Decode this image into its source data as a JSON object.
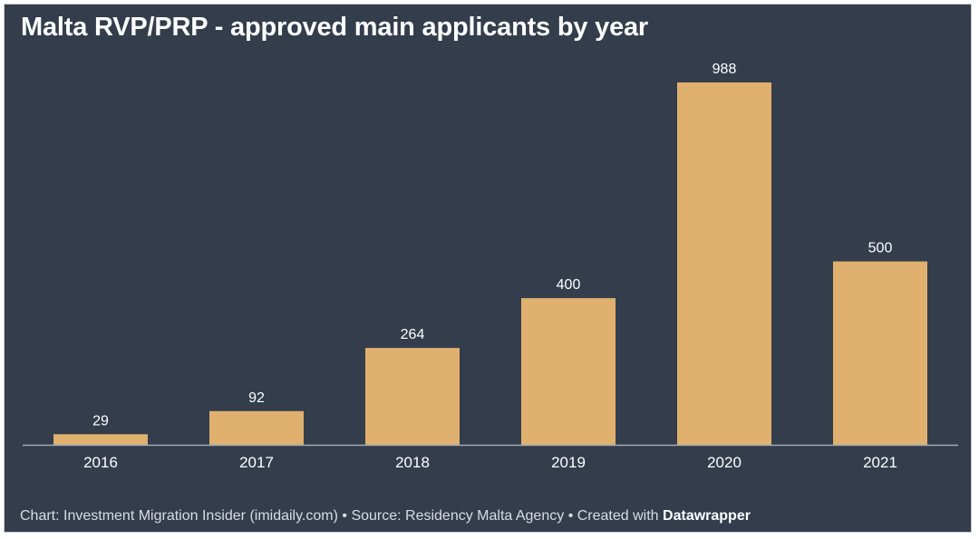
{
  "chart_data": {
    "type": "bar",
    "title": "Malta RVP/PRP - approved main applicants by year",
    "categories": [
      "2016",
      "2017",
      "2018",
      "2019",
      "2020",
      "2021"
    ],
    "values": [
      29,
      92,
      264,
      400,
      988,
      500
    ],
    "value_labels": [
      "29",
      "92",
      "264",
      "400",
      "988",
      "500"
    ],
    "xlabel": "",
    "ylabel": "",
    "ylim": [
      0,
      988
    ],
    "grid": false,
    "legend": "none"
  },
  "footer": {
    "credit": "Chart: Investment Migration Insider (imidaily.com)",
    "separator": "•",
    "source": "Source: Residency Malta Agency",
    "created_prefix": "Created with",
    "tool": "Datawrapper"
  },
  "colors": {
    "background": "#333d4c",
    "bar": "#e0b06f",
    "axis": "#a3a9b2",
    "text": "#ffffff",
    "footer_text": "#d9dde2"
  }
}
